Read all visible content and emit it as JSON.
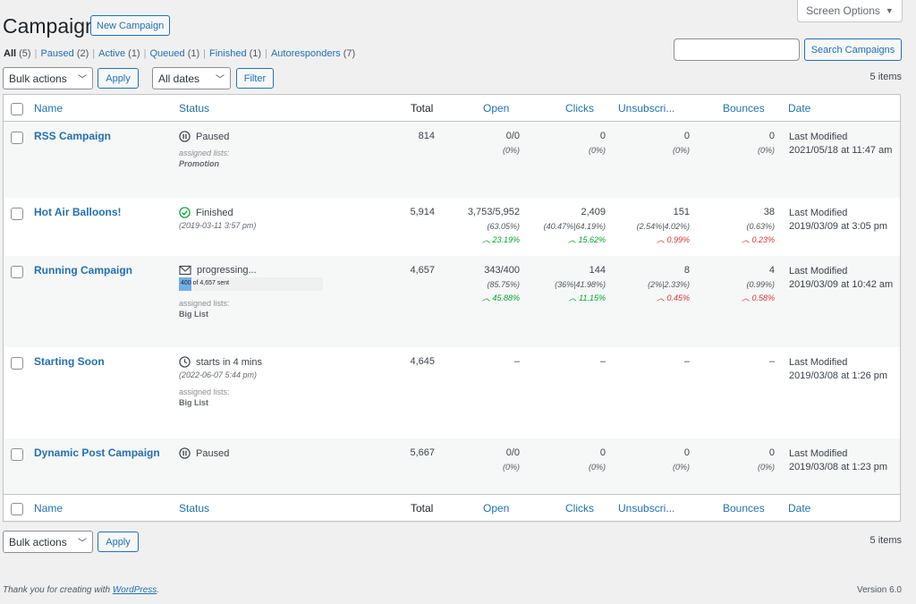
{
  "header": {
    "title": "Campaigns",
    "new_campaign_label": "New Campaign",
    "screen_options_label": "Screen Options"
  },
  "filters": [
    {
      "label": "All",
      "count": "(5)",
      "current": true
    },
    {
      "label": "Paused",
      "count": "(2)"
    },
    {
      "label": "Active",
      "count": "(1)"
    },
    {
      "label": "Queued",
      "count": "(1)"
    },
    {
      "label": "Finished",
      "count": "(1)"
    },
    {
      "label": "Autoresponders",
      "count": "(7)"
    }
  ],
  "search": {
    "value": "",
    "button_label": "Search Campaigns"
  },
  "toolbar": {
    "bulk_actions": "Bulk actions",
    "apply_label": "Apply",
    "dates": "All dates",
    "filter_label": "Filter",
    "items_count": "5 items"
  },
  "columns": {
    "name": "Name",
    "status": "Status",
    "total": "Total",
    "open": "Open",
    "clicks": "Clicks",
    "unsub": "Unsubscri...",
    "bounces": "Bounces",
    "date": "Date"
  },
  "rows": [
    {
      "name": "RSS Campaign",
      "status": "Paused",
      "status_icon": "pause-icon",
      "assigned_label": "assigned lists:",
      "assigned_value": "Promotion",
      "total": "814",
      "open": "0/0",
      "open_pct": "(0%)",
      "clicks": "0",
      "clicks_pct": "(0%)",
      "unsub": "0",
      "unsub_pct": "(0%)",
      "bounces": "0",
      "bounces_pct": "(0%)",
      "date_label": "Last Modified",
      "date": "2021/05/18 at 11:47 am"
    },
    {
      "name": "Hot Air Balloons!",
      "status": "Finished",
      "status_icon": "check-circle-icon",
      "status_sub": "(2019-03-11 3:57 pm)",
      "total": "5,914",
      "open": "3,753/5,952",
      "open_pct": "(63.05%)",
      "open_trend": "23.19%",
      "clicks": "2,409",
      "clicks_pct": "(40.47%|64.19%)",
      "clicks_trend": "15.62%",
      "unsub": "151",
      "unsub_pct": "(2.54%|4.02%)",
      "unsub_trend": "0.99%",
      "bounces": "38",
      "bounces_pct": "(0.63%)",
      "bounces_trend": "0.23%",
      "date_label": "Last Modified",
      "date": "2019/03/09 at 3:05 pm"
    },
    {
      "name": "Running Campaign",
      "status": "progressing...",
      "status_icon": "envelope-icon",
      "progress_text": "400 of 4,657 sent",
      "progress_fraction": 0.086,
      "assigned_label": "assigned lists:",
      "assigned_value": "Big List",
      "total": "4,657",
      "open": "343/400",
      "open_pct": "(85.75%)",
      "open_trend": "45.88%",
      "clicks": "144",
      "clicks_pct": "(36%|41.98%)",
      "clicks_trend": "11.15%",
      "unsub": "8",
      "unsub_pct": "(2%|2.33%)",
      "unsub_trend": "0.45%",
      "bounces": "4",
      "bounces_pct": "(0.99%)",
      "bounces_trend": "0.58%",
      "date_label": "Last Modified",
      "date": "2019/03/09 at 10:42 am"
    },
    {
      "name": "Starting Soon",
      "status": "starts in 4 mins",
      "status_icon": "clock-icon",
      "status_sub": "(2022-06-07 5:44 pm)",
      "assigned_label": "assigned lists:",
      "assigned_value": "Big List",
      "total": "4,645",
      "open": "–",
      "clicks": "–",
      "unsub": "–",
      "bounces": "–",
      "date_label": "Last Modified",
      "date": "2019/03/08 at 1:26 pm"
    },
    {
      "name": "Dynamic Post Campaign",
      "status": "Paused",
      "status_icon": "pause-icon",
      "total": "5,667",
      "open": "0/0",
      "open_pct": "(0%)",
      "clicks": "0",
      "clicks_pct": "(0%)",
      "unsub": "0",
      "unsub_pct": "(0%)",
      "bounces": "0",
      "bounces_pct": "(0%)",
      "date_label": "Last Modified",
      "date": "2019/03/08 at 1:23 pm"
    }
  ],
  "footer": {
    "thank_you_prefix": "Thank you for creating with ",
    "wordpress_link": "WordPress",
    "thank_you_suffix": ".",
    "version": "Version 6.0"
  },
  "colors": {
    "link": "#2271b1",
    "trend_up": "#00a32a",
    "trend_bad": "#d63638",
    "progress_fill": "#72aee6"
  }
}
